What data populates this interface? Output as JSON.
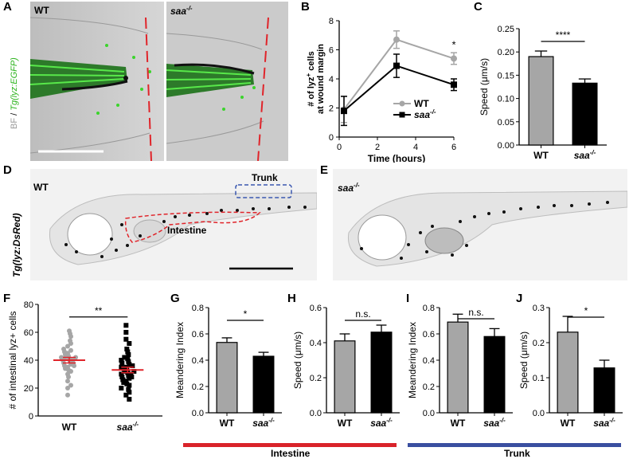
{
  "panels": {
    "A": {
      "letter": "A",
      "label_wt": "WT",
      "label_saa": "saa",
      "saa_sup": "-/-",
      "side_bf": "BF",
      "side_slash": " / ",
      "side_tg": "Tg(lyz:EGFP)"
    },
    "B": {
      "letter": "B"
    },
    "C": {
      "letter": "C"
    },
    "D": {
      "letter": "D",
      "label_wt": "WT",
      "trunk": "Trunk",
      "intestine": "Intestine",
      "side_tg": "Tg(lyz:DsRed)"
    },
    "E": {
      "letter": "E",
      "label_saa": "saa",
      "saa_sup": "-/-"
    },
    "F": {
      "letter": "F"
    },
    "G": {
      "letter": "G"
    },
    "H": {
      "letter": "H"
    },
    "I": {
      "letter": "I"
    },
    "J": {
      "letter": "J"
    }
  },
  "footer": {
    "intestine": "Intestine",
    "trunk": "Trunk",
    "intestine_color": "#d9232a",
    "trunk_color": "#3a4fa0"
  },
  "colors": {
    "wt_gray": "#a6a6a6",
    "saa_black": "#000000",
    "egfp_green": "#3bd42c",
    "dashed_red": "#e0242a",
    "dashed_blue": "#3a58b0"
  },
  "chart_data": [
    {
      "id": "B",
      "type": "line",
      "xlabel": "Time (hours)",
      "ylabel_line1": "# of lyz",
      "ylabel_sup": "+",
      "ylabel_line1_end": " cells",
      "ylabel_line2": "at wound margin",
      "xlim": [
        0,
        6
      ],
      "ylim": [
        0,
        8
      ],
      "xticks": [
        0,
        2,
        4,
        6
      ],
      "yticks": [
        0,
        2,
        4,
        6,
        8
      ],
      "annotation": "*",
      "series": [
        {
          "name": "WT",
          "color": "#a6a6a6",
          "marker": "circle",
          "x": [
            0.25,
            3,
            6
          ],
          "y": [
            1.9,
            6.7,
            5.4
          ],
          "err": [
            0.9,
            0.6,
            0.4
          ]
        },
        {
          "name": "saa",
          "name_sup": "-/-",
          "color": "#000000",
          "marker": "square",
          "x": [
            0.25,
            3,
            6
          ],
          "y": [
            1.8,
            4.9,
            3.6
          ],
          "err": [
            1.0,
            0.8,
            0.4
          ]
        }
      ]
    },
    {
      "id": "C",
      "type": "bar",
      "ylabel": "Speed (μm/s)",
      "categories": [
        "WT",
        "saa"
      ],
      "cat_sup": [
        "",
        "-/-"
      ],
      "values": [
        0.19,
        0.133
      ],
      "err": [
        0.012,
        0.009
      ],
      "colors": [
        "#a6a6a6",
        "#000000"
      ],
      "ylim": [
        0,
        0.25
      ],
      "yticks": [
        "0.00",
        "0.05",
        "0.10",
        "0.15",
        "0.20",
        "0.25"
      ],
      "sig": "****"
    },
    {
      "id": "F",
      "type": "scatter",
      "ylabel": "# of intestinal lyz+ cells",
      "categories": [
        "WT",
        "saa"
      ],
      "cat_sup": [
        "",
        "-/-"
      ],
      "ylim": [
        0,
        80
      ],
      "yticks": [
        0,
        20,
        40,
        60,
        80
      ],
      "sig": "**",
      "means": [
        40,
        33
      ],
      "sem": [
        2,
        2
      ],
      "groups": [
        {
          "name": "WT",
          "color": "#a6a6a6",
          "marker": "circle",
          "values": [
            15,
            20,
            22,
            25,
            28,
            30,
            32,
            33,
            34,
            35,
            36,
            36,
            37,
            38,
            38,
            39,
            40,
            40,
            41,
            41,
            42,
            42,
            43,
            44,
            45,
            46,
            47,
            48,
            50,
            52,
            54,
            57,
            59,
            61
          ]
        },
        {
          "name": "saa",
          "color": "#000000",
          "marker": "square",
          "values": [
            12,
            15,
            17,
            19,
            20,
            22,
            23,
            24,
            25,
            26,
            27,
            28,
            28,
            29,
            30,
            30,
            31,
            32,
            32,
            33,
            34,
            35,
            35,
            36,
            37,
            38,
            39,
            40,
            41,
            42,
            44,
            46,
            48,
            52,
            55,
            60,
            65
          ]
        }
      ]
    },
    {
      "id": "G",
      "type": "bar",
      "ylabel": "Meandering Index",
      "categories": [
        "WT",
        "saa"
      ],
      "cat_sup": [
        "",
        "-/-"
      ],
      "values": [
        0.535,
        0.43
      ],
      "err": [
        0.035,
        0.03
      ],
      "colors": [
        "#a6a6a6",
        "#000000"
      ],
      "ylim": [
        0,
        0.8
      ],
      "yticks": [
        "0.0",
        "0.2",
        "0.4",
        "0.6",
        "0.8"
      ],
      "sig": "*"
    },
    {
      "id": "H",
      "type": "bar",
      "ylabel": "Speed (μm/s)",
      "categories": [
        "WT",
        "saa"
      ],
      "cat_sup": [
        "",
        "-/-"
      ],
      "values": [
        0.41,
        0.46
      ],
      "err": [
        0.04,
        0.04
      ],
      "colors": [
        "#a6a6a6",
        "#000000"
      ],
      "ylim": [
        0,
        0.6
      ],
      "yticks": [
        "0.0",
        "0.2",
        "0.4",
        "0.6"
      ],
      "sig": "n.s."
    },
    {
      "id": "I",
      "type": "bar",
      "ylabel": "Meandering Index",
      "categories": [
        "WT",
        "saa"
      ],
      "cat_sup": [
        "",
        "-/-"
      ],
      "values": [
        0.69,
        0.58
      ],
      "err": [
        0.06,
        0.06
      ],
      "colors": [
        "#a6a6a6",
        "#000000"
      ],
      "ylim": [
        0,
        0.8
      ],
      "yticks": [
        "0.0",
        "0.2",
        "0.4",
        "0.6",
        "0.8"
      ],
      "sig": "n.s."
    },
    {
      "id": "J",
      "type": "bar",
      "ylabel": "Speed (μm/s)",
      "categories": [
        "WT",
        "saa"
      ],
      "cat_sup": [
        "",
        "-/-"
      ],
      "values": [
        0.23,
        0.128
      ],
      "err": [
        0.045,
        0.022
      ],
      "colors": [
        "#a6a6a6",
        "#000000"
      ],
      "ylim": [
        0,
        0.3
      ],
      "yticks": [
        "0.0",
        "0.1",
        "0.2",
        "0.3"
      ],
      "sig": "*"
    }
  ]
}
